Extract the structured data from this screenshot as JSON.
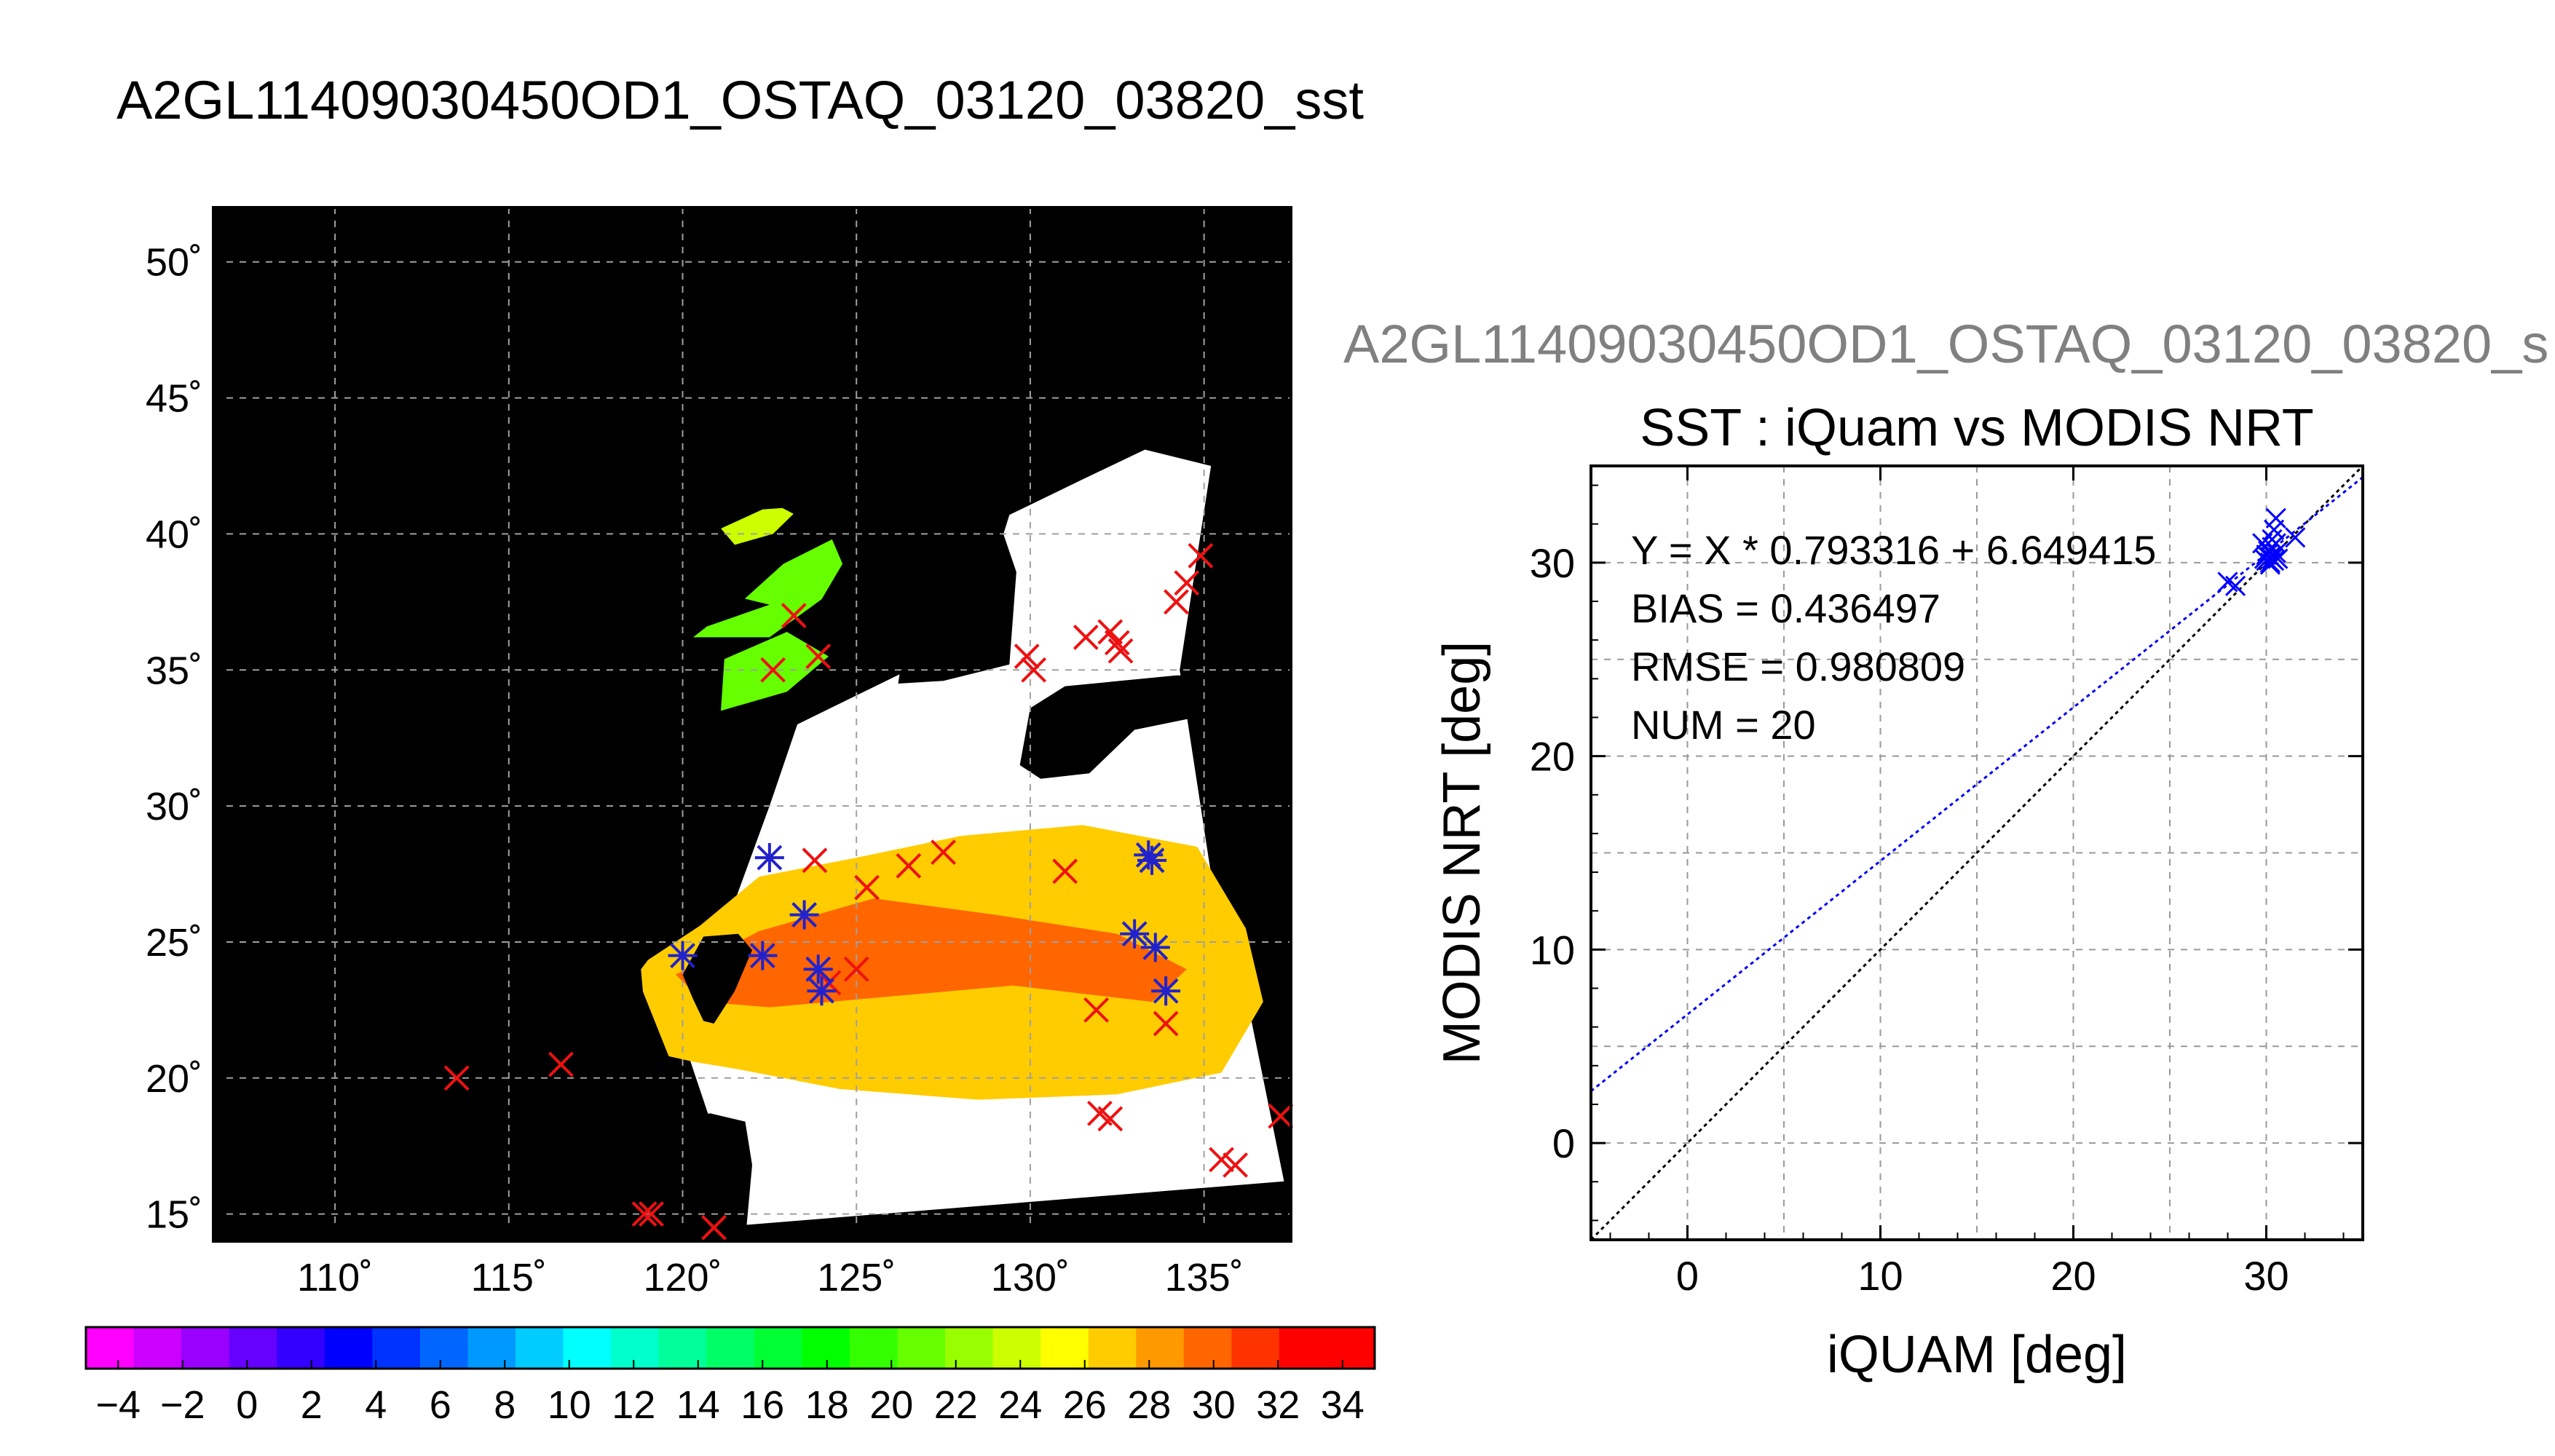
{
  "page_title": "A2GL11409030450OD1_OSTAQ_03120_03820_sst",
  "scatter_subtitle": "A2GL11409030450OD1_OSTAQ_03120_03820_s",
  "chart_data": [
    {
      "type": "heatmap",
      "name_shown": "",
      "x_ticks": [
        "110˚",
        "115˚",
        "120˚",
        "125˚",
        "130˚",
        "135˚"
      ],
      "x_tick_values": [
        110,
        115,
        120,
        125,
        130,
        135
      ],
      "y_ticks": [
        "15˚",
        "20˚",
        "25˚",
        "30˚",
        "35˚",
        "40˚",
        "45˚",
        "50˚"
      ],
      "y_tick_values": [
        15,
        20,
        25,
        30,
        35,
        40,
        45,
        50
      ],
      "xlim": [
        106.5,
        137.5
      ],
      "ylim": [
        14,
        52
      ],
      "grid": true,
      "background_color": "#000000",
      "colorbar": {
        "labels": [
          "−4",
          "−2",
          "0",
          "2",
          "4",
          "6",
          "8",
          "10",
          "12",
          "14",
          "16",
          "18",
          "20",
          "22",
          "24",
          "26",
          "28",
          "30",
          "32",
          "34"
        ],
        "values": [
          -4,
          -2,
          0,
          2,
          4,
          6,
          8,
          10,
          12,
          14,
          16,
          18,
          20,
          22,
          24,
          26,
          28,
          30,
          32,
          34
        ],
        "range": [
          -5,
          35
        ],
        "colors": [
          "#ff00ff",
          "#cc00ff",
          "#9900ff",
          "#6600ff",
          "#3300ff",
          "#0000ff",
          "#0033ff",
          "#0066ff",
          "#0099ff",
          "#00ccff",
          "#00ffff",
          "#00ffcc",
          "#00ff99",
          "#00ff66",
          "#00ff33",
          "#00ff00",
          "#33ff00",
          "#66ff00",
          "#99ff00",
          "#ccff00",
          "#ffff00",
          "#ffcc00",
          "#ff9900",
          "#ff6600",
          "#ff3300",
          "#ff0000",
          "#ff0000"
        ]
      },
      "markers_red": [
        [
          113.5,
          20
        ],
        [
          116.5,
          20.5
        ],
        [
          118.9,
          15
        ],
        [
          119.1,
          15
        ],
        [
          120.9,
          14.5
        ],
        [
          122.6,
          35
        ],
        [
          123.2,
          37
        ],
        [
          123.9,
          35.5
        ],
        [
          123.8,
          28
        ],
        [
          125.3,
          27
        ],
        [
          126.5,
          27.8
        ],
        [
          127.5,
          28.3
        ],
        [
          124.2,
          23.5
        ],
        [
          125.0,
          24.0
        ],
        [
          129.9,
          35.5
        ],
        [
          130.1,
          35.0
        ],
        [
          131.6,
          36.2
        ],
        [
          132.3,
          36.4
        ],
        [
          132.5,
          36.0
        ],
        [
          132.6,
          35.7
        ],
        [
          134.9,
          39.2
        ],
        [
          134.5,
          38.2
        ],
        [
          134.2,
          37.5
        ],
        [
          131.0,
          27.6
        ],
        [
          131.9,
          22.5
        ],
        [
          133.9,
          22.0
        ],
        [
          132.0,
          18.7
        ],
        [
          132.3,
          18.5
        ],
        [
          135.5,
          17.0
        ],
        [
          135.9,
          16.8
        ],
        [
          137.2,
          18.6
        ]
      ],
      "markers_blue": [
        [
          120.0,
          24.5
        ],
        [
          122.3,
          24.5
        ],
        [
          122.5,
          28.1
        ],
        [
          123.5,
          26.0
        ],
        [
          123.9,
          24.0
        ],
        [
          124.0,
          23.2
        ],
        [
          133.4,
          28.2
        ],
        [
          133.5,
          28.0
        ],
        [
          133.0,
          25.3
        ],
        [
          133.6,
          24.8
        ],
        [
          133.9,
          23.2
        ]
      ]
    },
    {
      "type": "scatter",
      "title": "SST : iQuam vs MODIS NRT",
      "xlabel": "iQUAM [deg]",
      "ylabel": "MODIS NRT [deg]",
      "xlim": [
        -5,
        35
      ],
      "ylim": [
        -5,
        35
      ],
      "x_ticks": [
        0,
        10,
        20,
        30
      ],
      "y_ticks": [
        0,
        10,
        20,
        30
      ],
      "grid": true,
      "stats": [
        "Y = X * 0.793316 + 6.649415",
        "BIAS = 0.436497",
        "RMSE = 0.980809",
        "NUM = 20"
      ],
      "fit": {
        "slope": 0.793316,
        "intercept": 6.649415,
        "color": "#0000ff"
      },
      "identity_line_color": "#000000",
      "points": [
        [
          28.0,
          29.0
        ],
        [
          28.4,
          28.8
        ],
        [
          29.8,
          31.0
        ],
        [
          30.0,
          30.4
        ],
        [
          30.0,
          30.1
        ],
        [
          30.1,
          30.6
        ],
        [
          30.2,
          30.0
        ],
        [
          30.2,
          30.3
        ],
        [
          30.3,
          30.8
        ],
        [
          30.3,
          30.2
        ],
        [
          30.4,
          30.1
        ],
        [
          30.5,
          30.5
        ],
        [
          30.5,
          32.3
        ],
        [
          30.4,
          31.7
        ],
        [
          30.6,
          30.2
        ],
        [
          30.2,
          29.9
        ],
        [
          29.9,
          30.2
        ],
        [
          30.3,
          31.2
        ],
        [
          31.5,
          31.3
        ],
        [
          30.5,
          31.0
        ]
      ],
      "point_color": "#0000ff"
    }
  ]
}
